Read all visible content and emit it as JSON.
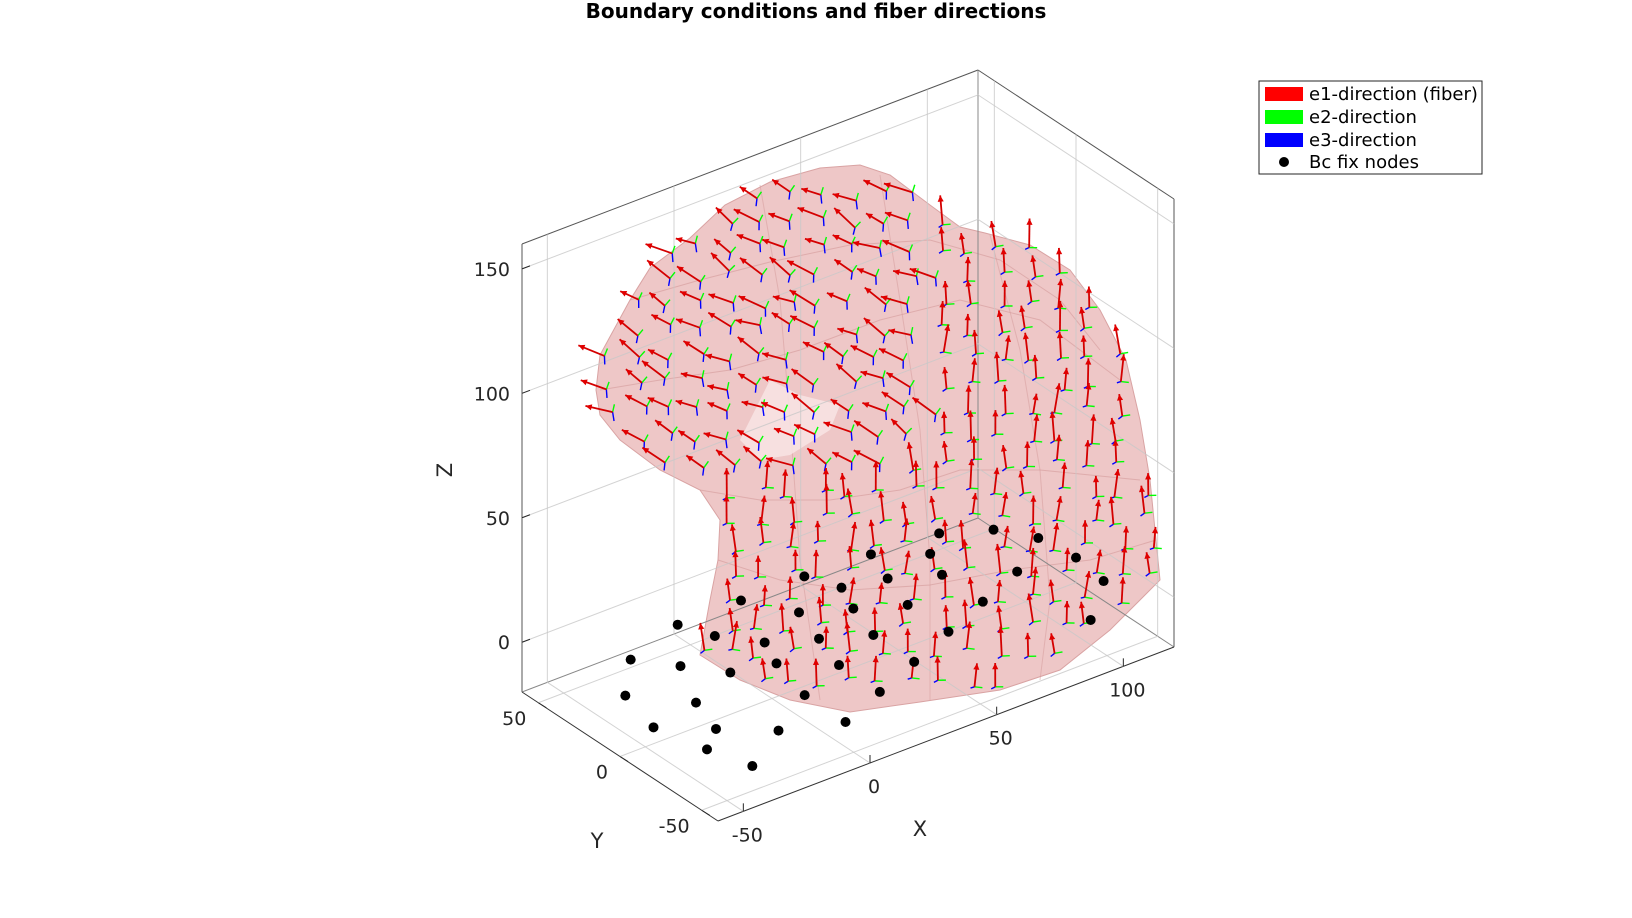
{
  "chart_data": {
    "type": "scatter",
    "title": "Boundary conditions and fiber directions",
    "xlabel": "X",
    "ylabel": "Y",
    "zlabel": "Z",
    "x_ticks": [
      "-50",
      "0",
      "50",
      "100"
    ],
    "y_ticks": [
      "-50",
      "0",
      "50"
    ],
    "z_ticks": [
      "0",
      "50",
      "100",
      "150"
    ],
    "xlim": [
      -60,
      120
    ],
    "ylim": [
      -60,
      60
    ],
    "zlim": [
      -20,
      160
    ],
    "grid": true,
    "legend_position": "top-right",
    "colors": {
      "surface": "#e8b0b0",
      "e1": "#ff0000",
      "e2": "#00ff00",
      "e3": "#0000ff",
      "bc": "#000000"
    },
    "legend": [
      {
        "label": "e1-direction (fiber)",
        "color": "#ff0000",
        "marker": "patch"
      },
      {
        "label": "e2-direction",
        "color": "#00ff00",
        "marker": "patch"
      },
      {
        "label": "e3-direction",
        "color": "#0000ff",
        "marker": "patch"
      },
      {
        "label": "Bc fix nodes",
        "color": "#000000",
        "marker": "dot"
      }
    ],
    "series": [
      {
        "name": "Bc fix nodes",
        "points": [
          [
            -40,
            -50,
            -10
          ],
          [
            -45,
            -30,
            -10
          ],
          [
            -50,
            -5,
            -10
          ],
          [
            -45,
            20,
            -10
          ],
          [
            -30,
            40,
            -10
          ],
          [
            -5,
            50,
            -10
          ],
          [
            20,
            50,
            -10
          ],
          [
            45,
            50,
            -10
          ],
          [
            70,
            48,
            -10
          ],
          [
            95,
            45,
            -10
          ],
          [
            110,
            35,
            -10
          ],
          [
            118,
            20,
            -10
          ],
          [
            120,
            0,
            -10
          ],
          [
            118,
            -20,
            -10
          ],
          [
            100,
            -40,
            -10
          ],
          [
            -20,
            -35,
            -10
          ],
          [
            0,
            -20,
            -10
          ],
          [
            20,
            -10,
            -10
          ],
          [
            40,
            0,
            -10
          ],
          [
            60,
            10,
            -10
          ],
          [
            80,
            20,
            -10
          ],
          [
            -10,
            10,
            -10
          ],
          [
            10,
            20,
            -10
          ],
          [
            30,
            30,
            -10
          ],
          [
            50,
            35,
            -10
          ],
          [
            0,
            -45,
            -10
          ],
          [
            20,
            -35,
            -10
          ],
          [
            40,
            -25,
            -10
          ],
          [
            60,
            -15,
            -10
          ],
          [
            80,
            -5,
            -10
          ],
          [
            100,
            5,
            -10
          ],
          [
            -30,
            0,
            -10
          ],
          [
            -20,
            25,
            -10
          ],
          [
            0,
            35,
            -10
          ],
          [
            25,
            10,
            -10
          ],
          [
            65,
            30,
            -10
          ],
          [
            85,
            35,
            -10
          ],
          [
            -35,
            -20,
            -10
          ],
          [
            5,
            5,
            -10
          ],
          [
            45,
            20,
            -10
          ]
        ]
      }
    ]
  }
}
